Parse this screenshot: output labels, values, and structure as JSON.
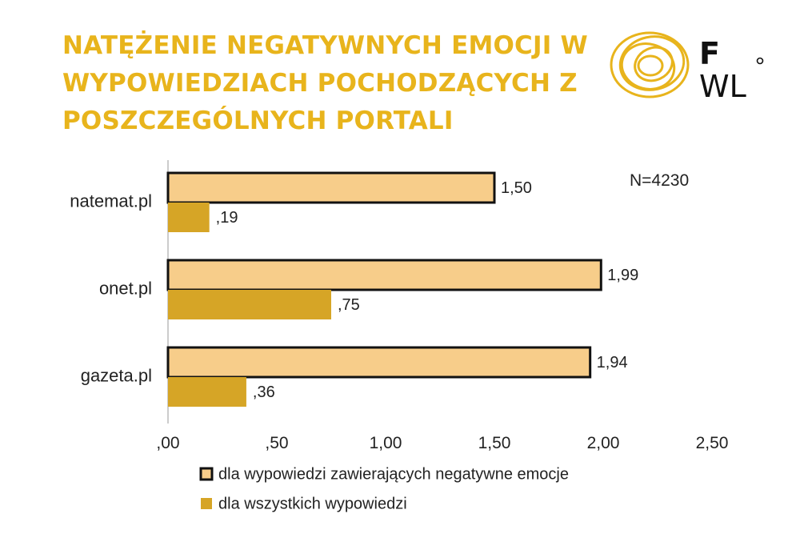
{
  "title": "NATĘŻENIE NEGATYWNYCH EMOCJI W WYPOWIEDZIACH POCHODZĄCYCH Z POSZCZEGÓLNYCH PORTALI",
  "logo": {
    "text_top": "F",
    "text_bottom": "WL",
    "color": "#e8b41c"
  },
  "colors": {
    "accent": "#e8b41c",
    "series_light": "#f7cd8a",
    "series_dark": "#d6a526",
    "outline": "#111111"
  },
  "chart_data": {
    "type": "bar",
    "orientation": "horizontal",
    "title": "NATĘŻENIE NEGATYWNYCH EMOCJI W WYPOWIEDZIACH POCHODZĄCYCH Z POSZCZEGÓLNYCH PORTALI",
    "annotation": "N=4230",
    "categories": [
      "natemat.pl",
      "onet.pl",
      "gazeta.pl"
    ],
    "series": [
      {
        "name": "dla wypowiedzi zawierających negatywne emocje",
        "values": [
          1.5,
          1.99,
          1.94
        ],
        "labels": [
          "1,50",
          "1,99",
          "1,94"
        ]
      },
      {
        "name": "dla wszystkich wypowiedzi",
        "values": [
          0.19,
          0.75,
          0.36
        ],
        "labels": [
          ",19",
          ",75",
          ",36"
        ]
      }
    ],
    "xlim": [
      0,
      2.5
    ],
    "xticks": [
      0,
      0.5,
      1.0,
      1.5,
      2.0,
      2.5
    ],
    "xtick_labels": [
      ",00",
      ",50",
      "1,00",
      "1,50",
      "2,00",
      "2,50"
    ],
    "legend": "bottom",
    "grid": false
  }
}
